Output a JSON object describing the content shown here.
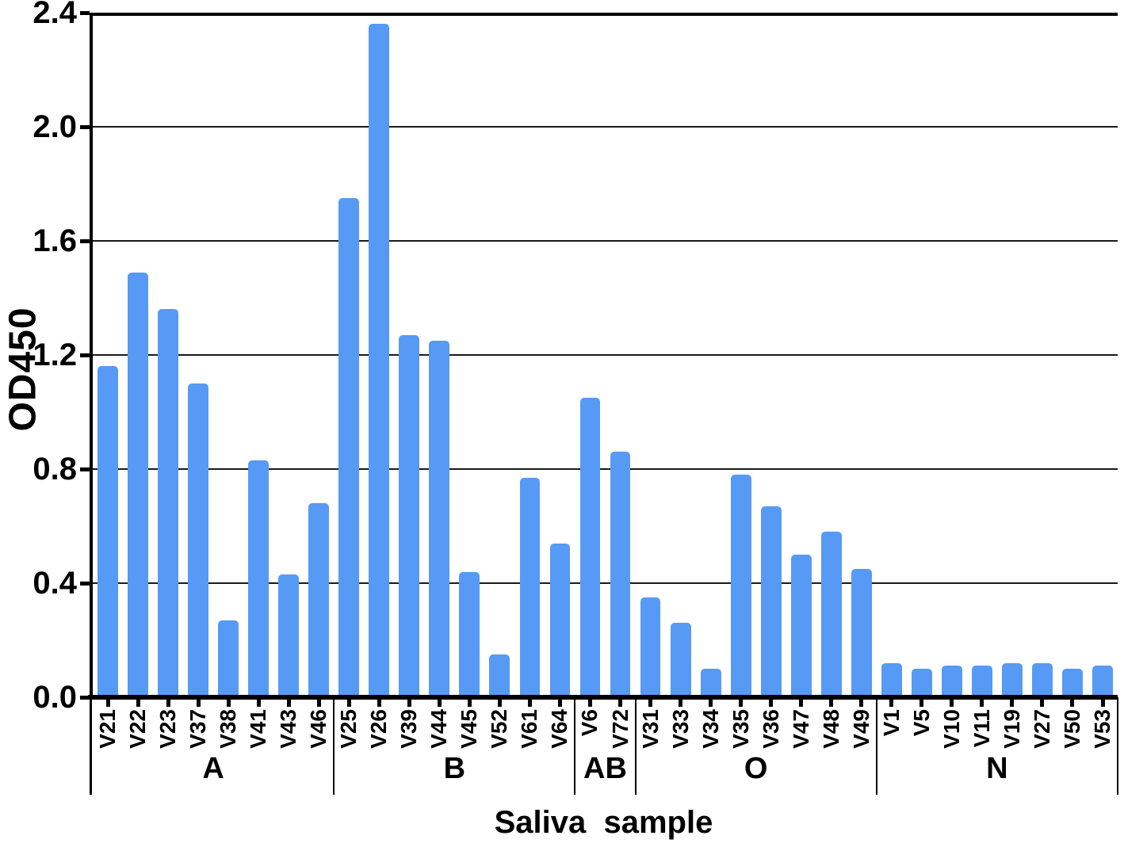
{
  "chart_data": {
    "type": "bar",
    "title": "",
    "xlabel": "Saliva  sample",
    "ylabel": "OD450",
    "ylim": [
      0,
      2.4
    ],
    "yticks": [
      0.0,
      0.4,
      0.8,
      1.2,
      1.6,
      2.0,
      2.4
    ],
    "ytick_labels": [
      "0.0",
      "0.4",
      "0.8",
      "1.2",
      "1.6",
      "2.0",
      "2.4"
    ],
    "grid": true,
    "legend": "none",
    "bar_color": "#579af6",
    "axis_color": "#000000",
    "groups": [
      {
        "label": "A",
        "samples": [
          "V21",
          "V22",
          "V23",
          "V37",
          "V38",
          "V41",
          "V43",
          "V46"
        ],
        "values": [
          1.16,
          1.49,
          1.36,
          1.1,
          0.27,
          0.83,
          0.43,
          0.68
        ]
      },
      {
        "label": "B",
        "samples": [
          "V25",
          "V26",
          "V39",
          "V44",
          "V45",
          "V52",
          "V61",
          "V64"
        ],
        "values": [
          1.75,
          2.36,
          1.27,
          1.25,
          0.44,
          0.15,
          0.77,
          0.54
        ]
      },
      {
        "label": "AB",
        "samples": [
          "V6",
          "V72"
        ],
        "values": [
          1.05,
          0.86
        ]
      },
      {
        "label": "O",
        "samples": [
          "V31",
          "V33",
          "V34",
          "V35",
          "V36",
          "V47",
          "V48",
          "V49"
        ],
        "values": [
          0.35,
          0.26,
          0.1,
          0.78,
          0.67,
          0.5,
          0.58,
          0.45
        ]
      },
      {
        "label": "N",
        "samples": [
          "V1",
          "V5",
          "V10",
          "V11",
          "V19",
          "V27",
          "V50",
          "V53"
        ],
        "values": [
          0.12,
          0.1,
          0.11,
          0.11,
          0.12,
          0.12,
          0.1,
          0.11
        ]
      }
    ]
  }
}
